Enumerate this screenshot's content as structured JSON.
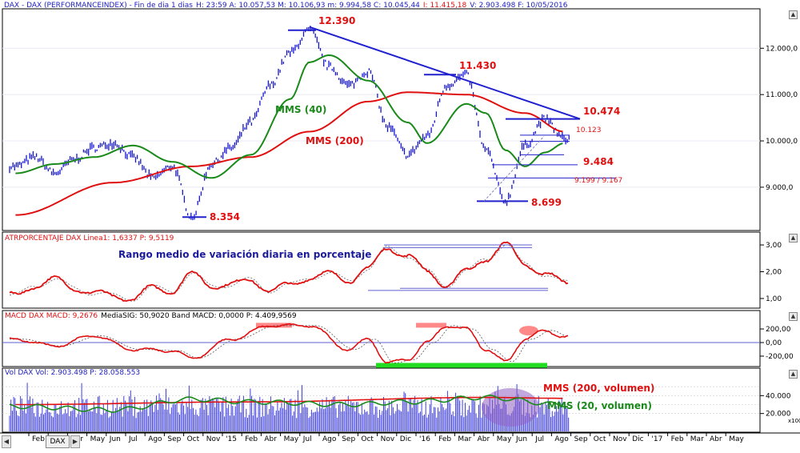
{
  "window": {
    "header_main": "DAX - DAX (PERFORMANCEINDEX) - Fin de dia 1 dias",
    "header_main_values": "H: 23:59  A: 10.057,53  M: 10.106,93  m: 9.994,58  C: 10.045,44",
    "header_main_highlight": "I: 11.415,18",
    "header_main_tail": "V: 2.903.498  F: 10/05/2016",
    "header_atr": "ATRPORCENTAJE  DAX Linea1: 1,6337  P: 9,5119",
    "header_macd_red": "MACD  DAX MACD: 9,2676",
    "header_macd_black": "MediaSIG: 50,9020 Band  MACD: 0,0000  P: 4.409,9569",
    "header_vol": "Vol DAX Vol: 2.903.498  P: 28.058.553",
    "tab_label": "DAX"
  },
  "colors": {
    "price": "#1515cc",
    "sma40": "#1a8a1a",
    "sma200": "#e01010",
    "trend": "#2020d0",
    "support": "#2020cc",
    "atr": "#e01010",
    "macd": "#e01010",
    "volume": "#4040e0",
    "highlight_green": "#22dd22",
    "highlight_red": "#ff6b6b",
    "ellipse": "#9060c0"
  },
  "annotations": {
    "level_12390": "12.390",
    "level_11430": "11.430",
    "level_10474": "10.474",
    "level_10123": "10.123",
    "level_9484": "9.484",
    "level_9199": "9.199 / 9.167",
    "level_8699": "8.699",
    "level_8354": "8.354",
    "sma40": "MMS (40)",
    "sma200": "MMS (200)",
    "atr_caption": "Rango medio de variación diaria en porcentaje",
    "vol_sma200": "MMS (200, volumen)",
    "vol_sma20": "MMS (20, volumen)"
  },
  "chart_data": [
    {
      "type": "line",
      "panel": "price",
      "series": [
        {
          "name": "DAX",
          "points": [
            [
              "2014-01",
              9450
            ],
            [
              "2014-02",
              9650
            ],
            [
              "2014-03",
              9300
            ],
            [
              "2014-04",
              9600
            ],
            [
              "2014-05",
              9850
            ],
            [
              "2014-06",
              9950
            ],
            [
              "2014-07",
              9650
            ],
            [
              "2014-08",
              9200
            ],
            [
              "2014-09",
              9450
            ],
            [
              "2014-10",
              8354
            ],
            [
              "2014-11",
              9500
            ],
            [
              "2014-12",
              9850
            ],
            [
              "2015-01",
              10400
            ],
            [
              "2015-02",
              11200
            ],
            [
              "2015-03",
              11900
            ],
            [
              "2015-04",
              12390
            ],
            [
              "2015-05",
              11600
            ],
            [
              "2015-06",
              11200
            ],
            [
              "2015-07",
              11500
            ],
            [
              "2015-08",
              10300
            ],
            [
              "2015-09",
              9700
            ],
            [
              "2015-10",
              10100
            ],
            [
              "2015-11",
              11200
            ],
            [
              "2015-12",
              11430
            ],
            [
              "2016-01",
              9800
            ],
            [
              "2016-02",
              8699
            ],
            [
              "2016-03",
              9900
            ],
            [
              "2016-04",
              10474
            ],
            [
              "2016-05",
              10045
            ]
          ]
        },
        {
          "name": "MMS (40)",
          "points": [
            [
              "2014-01",
              9300
            ],
            [
              "2014-03",
              9500
            ],
            [
              "2014-05",
              9650
            ],
            [
              "2014-07",
              9900
            ],
            [
              "2014-09",
              9550
            ],
            [
              "2014-11",
              9200
            ],
            [
              "2015-01",
              9700
            ],
            [
              "2015-03",
              10900
            ],
            [
              "2015-04",
              11700
            ],
            [
              "2015-05",
              11850
            ],
            [
              "2015-07",
              11300
            ],
            [
              "2015-09",
              10400
            ],
            [
              "2015-10",
              9950
            ],
            [
              "2015-12",
              10800
            ],
            [
              "2016-01",
              10600
            ],
            [
              "2016-02",
              9800
            ],
            [
              "2016-03",
              9450
            ],
            [
              "2016-04",
              9750
            ],
            [
              "2016-05",
              9950
            ]
          ]
        },
        {
          "name": "MMS (200)",
          "points": [
            [
              "2014-01",
              8400
            ],
            [
              "2014-06",
              9100
            ],
            [
              "2014-10",
              9450
            ],
            [
              "2015-01",
              9650
            ],
            [
              "2015-04",
              10200
            ],
            [
              "2015-07",
              10850
            ],
            [
              "2015-09",
              11050
            ],
            [
              "2015-12",
              11000
            ],
            [
              "2016-03",
              10600
            ],
            [
              "2016-05",
              10200
            ]
          ]
        }
      ],
      "trendline": [
        [
          "2015-04",
          12390
        ],
        [
          "2016-05",
          10474
        ]
      ],
      "horizontal_levels": [
        12390,
        11430,
        10474,
        10123,
        9484,
        9199,
        9167,
        8699,
        8354
      ],
      "y_ticks": [
        "12.000,0",
        "11.000,0",
        "10.000,0",
        "9.000,0"
      ],
      "ylim": [
        8100,
        12800
      ]
    },
    {
      "type": "line",
      "panel": "atr",
      "series": [
        {
          "name": "ATRPORCENTAJE",
          "points": [
            [
              "2014-01",
              1.1
            ],
            [
              "2014-02",
              1.5
            ],
            [
              "2014-03",
              1.7
            ],
            [
              "2014-04",
              1.4
            ],
            [
              "2014-05",
              1.2
            ],
            [
              "2014-06",
              1.1
            ],
            [
              "2014-07",
              1.0
            ],
            [
              "2014-08",
              1.4
            ],
            [
              "2014-09",
              1.3
            ],
            [
              "2014-10",
              1.9
            ],
            [
              "2014-11",
              1.5
            ],
            [
              "2014-12",
              1.5
            ],
            [
              "2015-01",
              1.7
            ],
            [
              "2015-02",
              1.3
            ],
            [
              "2015-03",
              1.5
            ],
            [
              "2015-04",
              1.8
            ],
            [
              "2015-05",
              1.9
            ],
            [
              "2015-06",
              1.7
            ],
            [
              "2015-07",
              2.1
            ],
            [
              "2015-08",
              2.9
            ],
            [
              "2015-09",
              2.6
            ],
            [
              "2015-10",
              2.0
            ],
            [
              "2015-11",
              1.5
            ],
            [
              "2015-12",
              2.0
            ],
            [
              "2016-01",
              2.5
            ],
            [
              "2016-02",
              3.0
            ],
            [
              "2016-03",
              2.3
            ],
            [
              "2016-04",
              1.9
            ],
            [
              "2016-05",
              1.6
            ]
          ]
        }
      ],
      "y_ticks": [
        "3,00",
        "2,00",
        "1,00"
      ],
      "ylim": [
        0.7,
        3.3
      ]
    },
    {
      "type": "line",
      "panel": "macd",
      "series": [
        {
          "name": "MACD",
          "points": [
            [
              "2014-01",
              50
            ],
            [
              "2014-03",
              -50
            ],
            [
              "2014-05",
              100
            ],
            [
              "2014-07",
              -100
            ],
            [
              "2014-09",
              -120
            ],
            [
              "2014-10",
              -230
            ],
            [
              "2014-12",
              50
            ],
            [
              "2015-02",
              250
            ],
            [
              "2015-04",
              250
            ],
            [
              "2015-06",
              -100
            ],
            [
              "2015-07",
              50
            ],
            [
              "2015-08",
              -300
            ],
            [
              "2015-09",
              -250
            ],
            [
              "2015-10",
              0
            ],
            [
              "2015-11",
              250
            ],
            [
              "2015-12",
              200
            ],
            [
              "2016-01",
              -100
            ],
            [
              "2016-02",
              -280
            ],
            [
              "2016-03",
              50
            ],
            [
              "2016-04",
              180
            ],
            [
              "2016-05",
              80
            ]
          ]
        }
      ],
      "y_ticks": [
        "200,00",
        "0,00",
        "-200,00"
      ],
      "ylim": [
        -330,
        330
      ]
    },
    {
      "type": "bar",
      "panel": "volume",
      "series": [
        {
          "name": "Vol",
          "unit": "millions",
          "typical_range": [
            20,
            40
          ]
        },
        {
          "name": "MMS (200, volumen)",
          "points": [
            [
              "2014-01",
              30
            ],
            [
              "2015-01",
              33
            ],
            [
              "2016-01",
              38
            ],
            [
              "2016-05",
              37
            ]
          ]
        },
        {
          "name": "MMS (20, volumen)",
          "points": [
            [
              "2014-01",
              28
            ],
            [
              "2014-06",
              24
            ],
            [
              "2014-10",
              36
            ],
            [
              "2015-01",
              33
            ],
            [
              "2015-06",
              30
            ],
            [
              "2015-09",
              33
            ],
            [
              "2016-01",
              38
            ],
            [
              "2016-05",
              30
            ]
          ]
        }
      ],
      "y_ticks": [
        "40.000",
        "20.000"
      ],
      "y_extra": "x100",
      "ylim": [
        0,
        60
      ]
    }
  ],
  "x_axis": {
    "labels": [
      "Feb",
      "Mar",
      "Abr",
      "May",
      "Jun",
      "Jul",
      "Ago",
      "Sep",
      "Oct",
      "Nov",
      "'15",
      "Feb",
      "Abr",
      "May",
      "Jul",
      "Ago",
      "Sep",
      "Oct",
      "Nov",
      "Dic",
      "'16",
      "Feb",
      "Mar",
      "Abr",
      "May",
      "Jun",
      "Jul",
      "Ago",
      "Sep",
      "Oct",
      "Nov",
      "Dic",
      "'17",
      "Feb",
      "Mar",
      "Abr",
      "May"
    ]
  }
}
